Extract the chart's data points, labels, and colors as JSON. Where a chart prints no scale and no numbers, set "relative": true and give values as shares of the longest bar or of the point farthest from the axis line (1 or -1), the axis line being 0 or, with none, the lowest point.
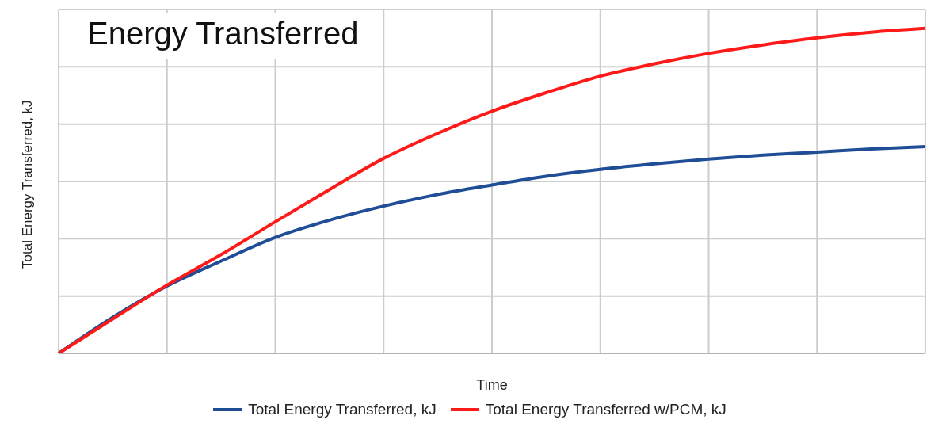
{
  "chart_data": {
    "type": "line",
    "title": "Energy Transferred",
    "xlabel": "Time",
    "ylabel": "Total Energy Transferred, kJ",
    "relative": true,
    "grid": true,
    "legend": "bottom",
    "marker": "none",
    "tick_labels": false,
    "categories": [
      null,
      null,
      null,
      null,
      null,
      null,
      null,
      null,
      null,
      null,
      null,
      null,
      null,
      null,
      null,
      null,
      null
    ],
    "series": [
      {
        "name": "Total Energy Transferred, kJ",
        "color": "#1f4e96",
        "values": [
          0,
          0.111,
          0.207,
          0.284,
          0.357,
          0.41,
          0.453,
          0.489,
          0.518,
          0.545,
          0.566,
          0.583,
          0.598,
          0.61,
          0.619,
          0.629,
          0.636
        ]
      },
      {
        "name": "Total Energy Transferred w/PCM, kJ",
        "color": "#ff1a1a",
        "values": [
          0,
          0.106,
          0.21,
          0.304,
          0.405,
          0.504,
          0.6,
          0.677,
          0.745,
          0.802,
          0.853,
          0.891,
          0.923,
          0.949,
          0.971,
          0.988,
          1
        ]
      }
    ]
  }
}
